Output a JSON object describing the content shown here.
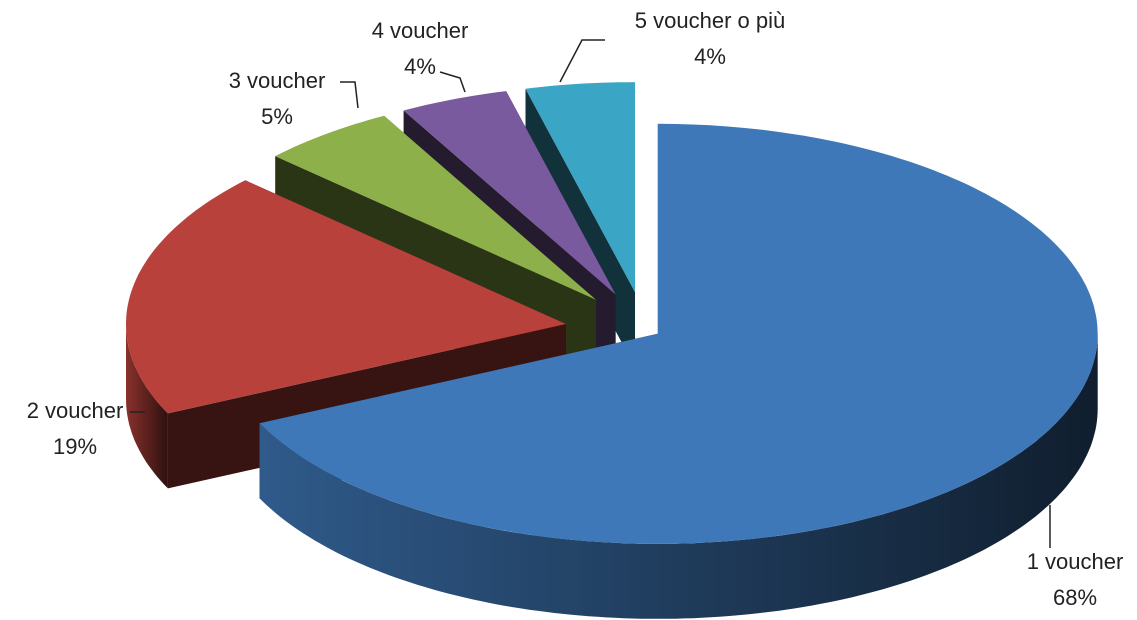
{
  "chart_data": {
    "type": "pie3d",
    "categories": [
      "1 voucher",
      "2 voucher",
      "3 voucher",
      "4 voucher",
      "5 voucher o più"
    ],
    "values": [
      68,
      19,
      5,
      4,
      4
    ],
    "value_labels": [
      "68%",
      "19%",
      "5%",
      "4%",
      "4%"
    ],
    "colors": [
      "#3e78b8",
      "#b8413b",
      "#8db04a",
      "#7a5a9e",
      "#3aa5c4"
    ]
  }
}
